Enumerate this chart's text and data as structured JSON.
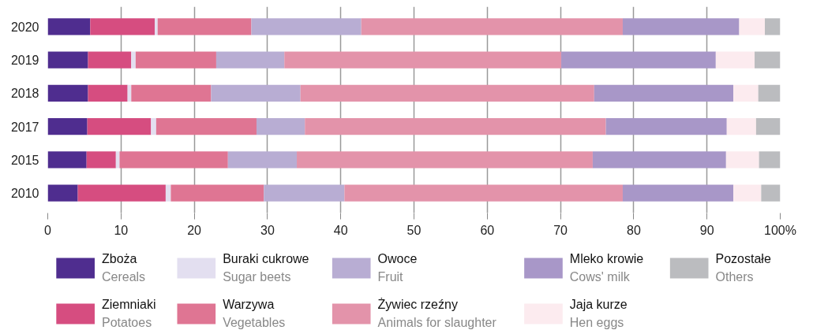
{
  "chart_data": {
    "type": "bar",
    "orientation": "horizontal",
    "stacked": true,
    "categories": [
      "2020",
      "2019",
      "2018",
      "2017",
      "2015",
      "2010"
    ],
    "series": [
      {
        "name": "Zboża\nCereals",
        "color": "#4f2d8f",
        "values": [
          5.8,
          5.5,
          5.5,
          5.4,
          5.3,
          4.1
        ]
      },
      {
        "name": "Ziemniaki\nPotatoes",
        "color": "#d64d80",
        "values": [
          8.8,
          5.9,
          5.4,
          8.7,
          4.0,
          12.0
        ]
      },
      {
        "name": "Buraki cukrowe\nSugar beets",
        "color": "#e3dff0",
        "values": [
          0.4,
          0.6,
          0.5,
          0.7,
          0.5,
          0.7
        ]
      },
      {
        "name": "Warzywa\nVegetables",
        "color": "#df7593",
        "values": [
          12.8,
          11.0,
          10.9,
          13.7,
          14.8,
          12.7
        ]
      },
      {
        "name": "Owoce\nFruit",
        "color": "#b8add3",
        "values": [
          15.0,
          9.3,
          12.2,
          6.6,
          9.4,
          11.0
        ]
      },
      {
        "name": "Żywiec rzeźny\nAnimals for slaughter",
        "color": "#e393aa",
        "values": [
          35.7,
          37.8,
          40.1,
          41.1,
          40.4,
          38.0
        ]
      },
      {
        "name": "Mleko krowie\nCows' milk",
        "color": "#a897c8",
        "values": [
          15.9,
          21.1,
          19.0,
          16.5,
          18.2,
          15.1
        ]
      },
      {
        "name": "Jaja kurze\nHen eggs",
        "color": "#fcebef",
        "values": [
          3.5,
          5.3,
          3.4,
          4.0,
          4.5,
          3.8
        ]
      },
      {
        "name": "Pozostałe\nOthers",
        "color": "#bbbcbf",
        "values": [
          2.1,
          3.5,
          3.0,
          3.3,
          2.9,
          2.6
        ]
      }
    ],
    "xlim": [
      0,
      100
    ],
    "xticks": [
      0,
      10,
      20,
      30,
      40,
      50,
      60,
      70,
      80,
      90,
      {
        "value": 100,
        "label": "100%"
      }
    ],
    "grid": "x",
    "legend": "bottom"
  }
}
